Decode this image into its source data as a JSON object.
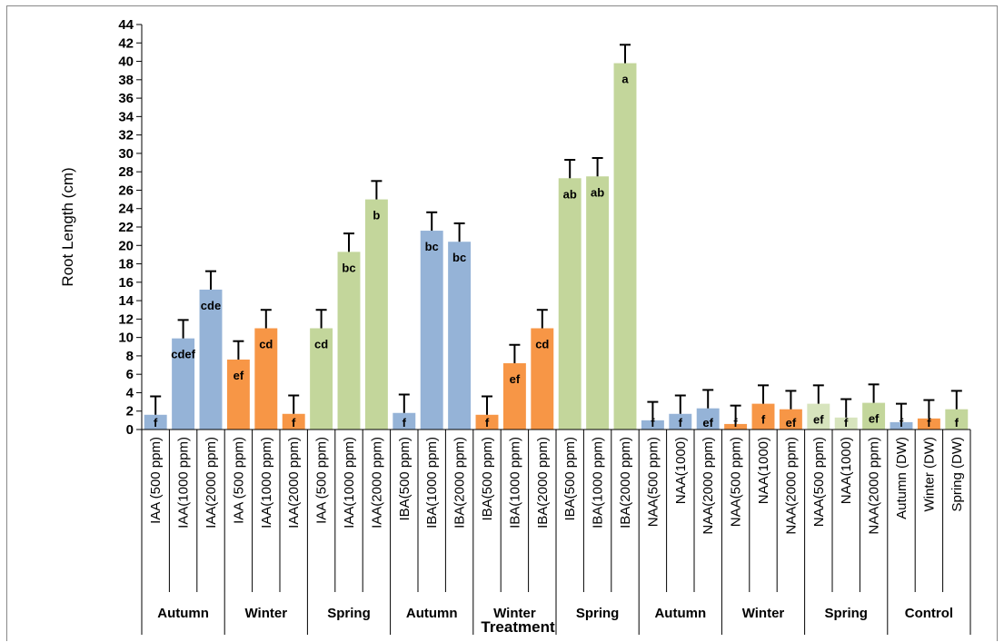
{
  "chart_data": {
    "type": "bar",
    "title": "",
    "ylabel": "Root Length (cm)",
    "xlabel": "Treatment",
    "ylim": [
      0,
      44
    ],
    "ytick_step": 2,
    "grid": false,
    "legend": "none",
    "colors": {
      "blue": "#95B3D7",
      "orange": "#F79646",
      "green": "#C3D69B",
      "light_green": "#D7E4BD",
      "error_bar": "#000000",
      "axis": "#000000"
    },
    "groups": [
      {
        "label": "Autumn",
        "size": 3
      },
      {
        "label": "Winter",
        "size": 3
      },
      {
        "label": "Spring",
        "size": 3
      },
      {
        "label": "Autumn",
        "size": 3
      },
      {
        "label": "Winter",
        "size": 3
      },
      {
        "label": "Spring",
        "size": 3
      },
      {
        "label": "Autumn",
        "size": 3
      },
      {
        "label": "Winter",
        "size": 3
      },
      {
        "label": "Spring",
        "size": 3
      },
      {
        "label": "Control",
        "size": 3
      }
    ],
    "bars": [
      {
        "category": "IAA (500 ppm)",
        "value": 1.6,
        "error": 2.0,
        "letter": "f",
        "color": "blue"
      },
      {
        "category": "IAA(1000 ppm)",
        "value": 9.9,
        "error": 2.0,
        "letter": "cdef",
        "color": "blue"
      },
      {
        "category": "IAA(2000 ppm)",
        "value": 15.2,
        "error": 2.0,
        "letter": "cde",
        "color": "blue"
      },
      {
        "category": "IAA (500 ppm)",
        "value": 7.6,
        "error": 2.0,
        "letter": "ef",
        "color": "orange"
      },
      {
        "category": "IAA(1000 ppm)",
        "value": 11.0,
        "error": 2.0,
        "letter": "cd",
        "color": "orange"
      },
      {
        "category": "IAA(2000 ppm)",
        "value": 1.7,
        "error": 2.0,
        "letter": "f",
        "color": "orange"
      },
      {
        "category": "IAA (500 ppm)",
        "value": 11.0,
        "error": 2.0,
        "letter": "cd",
        "color": "green"
      },
      {
        "category": "IAA(1000 ppm)",
        "value": 19.3,
        "error": 2.0,
        "letter": "bc",
        "color": "green"
      },
      {
        "category": "IAA(2000 ppm)",
        "value": 25.0,
        "error": 2.0,
        "letter": "b",
        "color": "green"
      },
      {
        "category": "IBA(500 ppm)",
        "value": 1.8,
        "error": 2.0,
        "letter": "f",
        "color": "blue"
      },
      {
        "category": "IBA(1000 ppm)",
        "value": 21.6,
        "error": 2.0,
        "letter": "bc",
        "color": "blue"
      },
      {
        "category": "IBA(2000 ppm)",
        "value": 20.4,
        "error": 2.0,
        "letter": "bc",
        "color": "blue"
      },
      {
        "category": "IBA(500 ppm)",
        "value": 1.6,
        "error": 2.0,
        "letter": "f",
        "color": "orange"
      },
      {
        "category": "IBA(1000 ppm)",
        "value": 7.2,
        "error": 2.0,
        "letter": "ef",
        "color": "orange"
      },
      {
        "category": "IBA(2000 ppm)",
        "value": 11.0,
        "error": 2.0,
        "letter": "cd",
        "color": "orange"
      },
      {
        "category": "IBA(500 ppm)",
        "value": 27.3,
        "error": 2.0,
        "letter": "ab",
        "color": "green"
      },
      {
        "category": "IBA(1000 ppm)",
        "value": 27.5,
        "error": 2.0,
        "letter": "ab",
        "color": "green"
      },
      {
        "category": "IBA(2000 ppm)",
        "value": 39.8,
        "error": 2.0,
        "letter": "a",
        "color": "green"
      },
      {
        "category": "NAA(500 ppm)",
        "value": 1.0,
        "error": 2.0,
        "letter": "f",
        "color": "blue"
      },
      {
        "category": "NAA(1000)",
        "value": 1.7,
        "error": 2.0,
        "letter": "f",
        "color": "blue"
      },
      {
        "category": "NAA(2000 ppm)",
        "value": 2.3,
        "error": 2.0,
        "letter": "ef",
        "color": "blue"
      },
      {
        "category": "NAA(500 ppm)",
        "value": 0.6,
        "error": 2.0,
        "letter": "f",
        "color": "orange"
      },
      {
        "category": "NAA(1000)",
        "value": 2.8,
        "error": 2.0,
        "letter": "f",
        "color": "orange"
      },
      {
        "category": "NAA(2000 ppm)",
        "value": 2.2,
        "error": 2.0,
        "letter": "ef",
        "color": "orange"
      },
      {
        "category": "NAA(500 ppm)",
        "value": 2.8,
        "error": 2.0,
        "letter": "ef",
        "color": "light_green"
      },
      {
        "category": "NAA(1000)",
        "value": 1.3,
        "error": 2.0,
        "letter": "f",
        "color": "light_green"
      },
      {
        "category": "NAA(2000 ppm)",
        "value": 2.9,
        "error": 2.0,
        "letter": "ef",
        "color": "green"
      },
      {
        "category": "Autumn (DW)",
        "value": 0.8,
        "error": 2.0,
        "letter": "f",
        "color": "blue"
      },
      {
        "category": "Winter (DW)",
        "value": 1.2,
        "error": 2.0,
        "letter": "f",
        "color": "orange"
      },
      {
        "category": "Spring (DW)",
        "value": 2.2,
        "error": 2.0,
        "letter": "f",
        "color": "green"
      }
    ]
  }
}
